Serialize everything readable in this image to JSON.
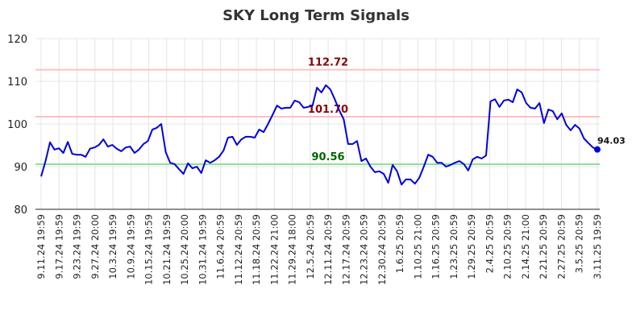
{
  "chart_data": {
    "type": "line",
    "title": "SKY Long Term Signals",
    "xlabel": "",
    "ylabel": "",
    "ylim": [
      80,
      120
    ],
    "yticks": [
      80,
      90,
      100,
      110,
      120
    ],
    "grid": true,
    "x_tick_labels": [
      "9.11.24 19:59",
      "9.17.24 19:59",
      "9.23.24 19:59",
      "9.27.24 20:00",
      "10.3.24 19:59",
      "10.9.24 19:59",
      "10.15.24 19:59",
      "10.21.24 19:59",
      "10.25.24 20:00",
      "10.31.24 19:59",
      "11.6.24 20:59",
      "11.12.24 20:59",
      "11.18.24 20:59",
      "11.22.24 21:00",
      "11.29.24 18:00",
      "12.5.24 20:59",
      "12.11.24 20:59",
      "12.17.24 20:59",
      "12.23.24 20:59",
      "12.30.24 20:59",
      "1.6.25 20:59",
      "1.10.25 21:00",
      "1.16.25 20:59",
      "1.23.25 20:59",
      "1.29.25 20:59",
      "2.4.25 20:59",
      "2.10.25 20:59",
      "2.14.25 21:00",
      "2.21.25 20:59",
      "2.27.25 20:59",
      "3.5.25 20:59",
      "3.11.25 19:59"
    ],
    "values": [
      87.7,
      91.3,
      95.7,
      94.0,
      94.3,
      93.2,
      95.8,
      93.0,
      92.8,
      92.8,
      92.3,
      94.2,
      94.5,
      95.1,
      96.4,
      94.7,
      95.1,
      94.2,
      93.6,
      94.5,
      94.7,
      93.2,
      94.0,
      95.3,
      96.0,
      98.7,
      99.1,
      100.0,
      93.4,
      90.9,
      90.6,
      89.4,
      88.3,
      90.8,
      89.6,
      90.0,
      88.5,
      91.5,
      90.9,
      91.5,
      92.3,
      93.8,
      96.8,
      97.0,
      95.1,
      96.4,
      97.0,
      97.0,
      96.8,
      98.7,
      98.1,
      100.0,
      102.1,
      104.3,
      103.6,
      103.8,
      103.8,
      105.5,
      105.1,
      103.8,
      104.0,
      104.3,
      108.5,
      107.4,
      109.1,
      108.1,
      105.8,
      103.2,
      101.1,
      95.3,
      95.3,
      96.0,
      91.3,
      91.9,
      90.0,
      88.7,
      88.9,
      88.3,
      86.2,
      90.4,
      88.9,
      85.8,
      87.0,
      87.0,
      86.0,
      87.4,
      90.0,
      92.8,
      92.3,
      90.9,
      90.9,
      90.0,
      90.4,
      90.9,
      91.3,
      90.6,
      89.1,
      91.7,
      92.3,
      91.9,
      92.6,
      105.3,
      105.8,
      104.0,
      105.5,
      105.7,
      105.1,
      108.1,
      107.4,
      104.9,
      103.8,
      103.6,
      104.9,
      100.2,
      103.4,
      103.0,
      101.1,
      102.5,
      99.8,
      98.5,
      99.8,
      98.9,
      96.6,
      95.5,
      94.5,
      94.03
    ],
    "last_value_label": "94.03",
    "levels": [
      {
        "value": 112.72,
        "label": "112.72",
        "line_color": "#ffc0c0",
        "text_color": "#8b0000"
      },
      {
        "value": 101.7,
        "label": "101.70",
        "line_color": "#ffc0c0",
        "text_color": "#8b0000"
      },
      {
        "value": 90.56,
        "label": "90.56",
        "line_color": "#90e090",
        "text_color": "#006400"
      }
    ],
    "series_color": "#0000dd"
  }
}
